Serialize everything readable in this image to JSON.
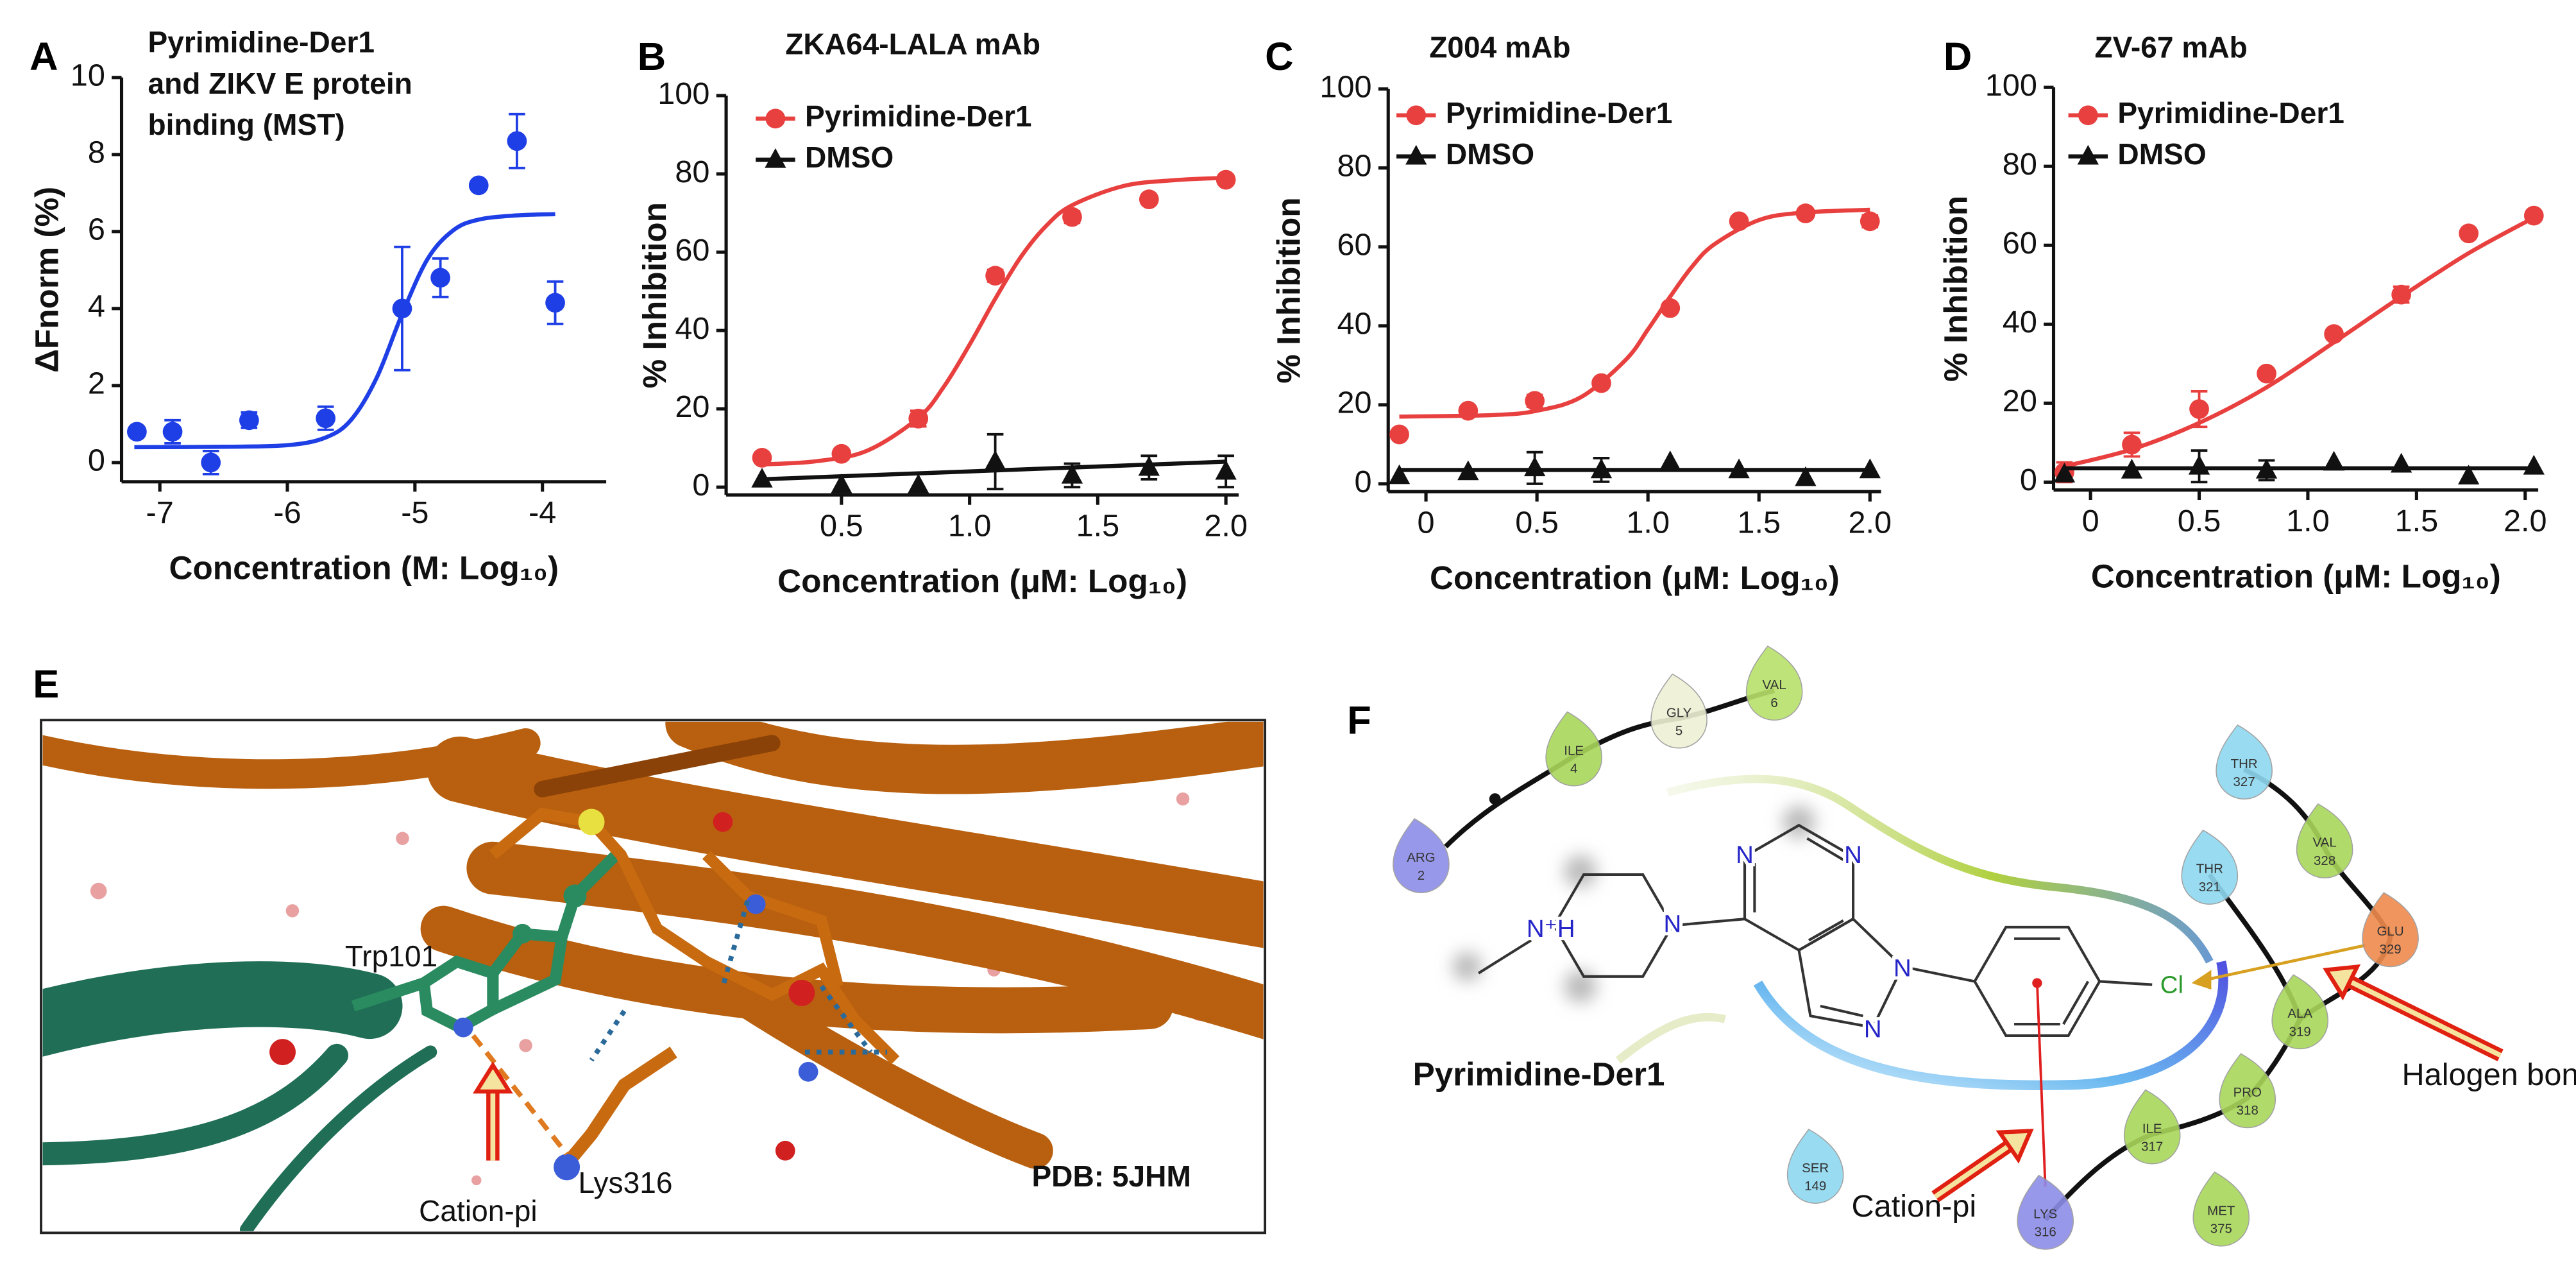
{
  "panel_labels": [
    "A",
    "B",
    "C",
    "D",
    "E",
    "F"
  ],
  "chart_data": [
    {
      "type": "scatter",
      "title": [
        "Pyrimidine-Der1",
        "and ZIKV E protein",
        "binding (MST)"
      ],
      "xlabel": "Concentration (M: Log₁₀)",
      "ylabel": "ΔFnorm (%)",
      "xlim": [
        -7.3,
        -3.5
      ],
      "ylim": [
        -0.5,
        10
      ],
      "xticks": [
        -7,
        -6,
        -5,
        -4
      ],
      "yticks": [
        0,
        2,
        4,
        6,
        8,
        10
      ],
      "series": [
        {
          "color": "#1f3fe6",
          "marker": "circle",
          "x": [
            -7.18,
            -6.9,
            -6.6,
            -6.3,
            -5.7,
            -5.1,
            -4.8,
            -4.5,
            -4.2,
            -3.9
          ],
          "values": [
            0.8,
            0.8,
            0.0,
            1.1,
            1.15,
            4.0,
            4.8,
            7.2,
            8.35,
            4.15
          ],
          "errors": [
            null,
            0.3,
            0.3,
            0.2,
            0.3,
            1.6,
            0.5,
            null,
            0.7,
            0.55
          ],
          "fit": {
            "x": [
              -7.2,
              -6.5,
              -6,
              -5.7,
              -5.5,
              -5.3,
              -5.1,
              -4.9,
              -4.7,
              -4.5,
              -4.2,
              -3.9
            ],
            "values": [
              0.4,
              0.41,
              0.45,
              0.65,
              1.11,
              2.2,
              3.86,
              5.29,
              6.03,
              6.31,
              6.42,
              6.45
            ]
          }
        }
      ]
    },
    {
      "type": "scatter",
      "title": "ZKA64-LALA mAb",
      "legend": "upper left",
      "xlabel": "Concentration (μM: Log₁₀)",
      "ylabel": "% Inhibition",
      "xlim": [
        0.05,
        2.05
      ],
      "ylim": [
        -2,
        100
      ],
      "xticks": [
        0.5,
        {
          "value": 1,
          "label": "1.0"
        },
        1.5,
        {
          "value": 2,
          "label": "2.0"
        }
      ],
      "yticks": [
        0,
        20,
        40,
        60,
        80,
        100
      ],
      "series": [
        {
          "name": "Pyrimidine-Der1",
          "color": "#e8403f",
          "marker": "circle",
          "x": [
            0.19,
            0.5,
            0.8,
            1.1,
            1.4,
            1.7,
            2.0
          ],
          "values": [
            7.5,
            8.5,
            17.5,
            54,
            69,
            73.5,
            78.5
          ],
          "errors": [
            null,
            null,
            2,
            1.5,
            1.5,
            null,
            null
          ],
          "fit": {
            "x": [
              0.19,
              0.4,
              0.6,
              0.8,
              0.9,
              1.0,
              1.1,
              1.2,
              1.3,
              1.4,
              1.6,
              1.8,
              2.0
            ],
            "values": [
              5.8,
              6.6,
              9.3,
              17.7,
              25.7,
              36.4,
              48.1,
              58.8,
              66.8,
              72,
              76.9,
              78.4,
              79
            ]
          }
        },
        {
          "name": "DMSO",
          "color": "#111111",
          "marker": "triangle",
          "x": [
            0.19,
            0.5,
            0.8,
            1.1,
            1.4,
            1.7,
            2.0
          ],
          "values": [
            2,
            0.5,
            0.5,
            6.5,
            3,
            5,
            4
          ],
          "errors": [
            null,
            null,
            null,
            7,
            3,
            3,
            4
          ],
          "fit": {
            "x": [
              0.19,
              2.0
            ],
            "values": [
              2,
              6.5
            ]
          }
        }
      ]
    },
    {
      "type": "scatter",
      "title": "Z004 mAb",
      "legend": "upper left",
      "xlabel": "Concentration (μM: Log₁₀)",
      "ylabel": "% Inhibition",
      "xlim": [
        -0.17,
        2.05
      ],
      "ylim": [
        -2,
        100
      ],
      "xticks": [
        0,
        0.5,
        {
          "value": 1,
          "label": "1.0"
        },
        1.5,
        {
          "value": 2,
          "label": "2.0"
        }
      ],
      "yticks": [
        0,
        20,
        40,
        60,
        80,
        100
      ],
      "series": [
        {
          "name": "Pyrimidine-Der1",
          "color": "#e8403f",
          "marker": "circle",
          "x": [
            -0.12,
            0.19,
            0.49,
            0.79,
            1.1,
            1.41,
            1.71,
            2.0
          ],
          "values": [
            12.5,
            18.5,
            21,
            25.5,
            44.5,
            66.5,
            68.5,
            66.5
          ],
          "errors": [
            null,
            1,
            1.5,
            1,
            1,
            1,
            1,
            1.5
          ],
          "fit": {
            "x": [
              -0.12,
              0.3,
              0.5,
              0.7,
              0.9,
              1.0,
              1.1,
              1.2,
              1.3,
              1.5,
              1.7,
              2.0
            ],
            "values": [
              17,
              17.4,
              18.5,
              22,
              31.4,
              39.1,
              47.4,
              55.1,
              60.7,
              66.8,
              68.7,
              69.4
            ]
          }
        },
        {
          "name": "DMSO",
          "color": "#111111",
          "marker": "triangle",
          "x": [
            -0.12,
            0.19,
            0.49,
            0.79,
            1.1,
            1.41,
            1.71,
            2.0
          ],
          "values": [
            2,
            3,
            4,
            3.5,
            5.5,
            3.5,
            1.5,
            3.5
          ],
          "errors": [
            null,
            null,
            4,
            3,
            null,
            null,
            null,
            null
          ],
          "fit": {
            "x": [
              -0.12,
              2.0
            ],
            "values": [
              3.5,
              3.5
            ]
          }
        }
      ]
    },
    {
      "type": "scatter",
      "title": "ZV-67 mAb",
      "legend": "upper left",
      "xlabel": "Concentration (μM: Log₁₀)",
      "ylabel": "% Inhibition",
      "xlim": [
        -0.17,
        2.06
      ],
      "ylim": [
        -2,
        100
      ],
      "xticks": [
        0,
        0.5,
        {
          "value": 1,
          "label": "1.0"
        },
        1.5,
        {
          "value": 2,
          "label": "2.0"
        }
      ],
      "yticks": [
        0,
        20,
        40,
        60,
        80,
        100
      ],
      "series": [
        {
          "name": "Pyrimidine-Der1",
          "color": "#e8403f",
          "marker": "circle",
          "x": [
            -0.12,
            0.19,
            0.5,
            0.81,
            1.12,
            1.43,
            1.74,
            2.04
          ],
          "values": [
            2.5,
            9.5,
            18.5,
            27.5,
            37.5,
            47.5,
            63,
            67.5
          ],
          "errors": [
            2.5,
            3,
            4.5,
            1,
            1,
            2,
            1,
            1
          ],
          "fit": {
            "x": [
              -0.12,
              0.19,
              0.5,
              0.81,
              1.12,
              1.43,
              1.74,
              2.04
            ],
            "values": [
              4,
              8.3,
              15,
              24,
              35.4,
              47,
              58,
              67
            ]
          }
        },
        {
          "name": "DMSO",
          "color": "#111111",
          "marker": "triangle",
          "x": [
            -0.12,
            0.19,
            0.5,
            0.81,
            1.12,
            1.43,
            1.74,
            2.04
          ],
          "values": [
            2,
            3,
            4,
            3,
            5,
            4.5,
            1.5,
            4
          ],
          "errors": [
            null,
            null,
            4,
            2.5,
            null,
            null,
            null,
            null
          ],
          "fit": {
            "x": [
              -0.12,
              2.04
            ],
            "values": [
              3.5,
              3.5
            ]
          }
        }
      ]
    }
  ],
  "structure_view": {
    "residue_a": "Trp101",
    "residue_b": "Lys316",
    "interaction": "Cation-pi",
    "pdb": "PDB: 5JHM"
  },
  "interaction_diagram": {
    "ligand": "Pyrimidine-Der1",
    "annotations": [
      "Halogen bond",
      "Cation-pi"
    ],
    "atoms": [
      "N",
      "N",
      "N",
      "N",
      "N",
      "N⁺H",
      "Cl"
    ],
    "residues": [
      {
        "name": "ARG",
        "number": 2,
        "color": "#8d8de8"
      },
      {
        "name": "ILE",
        "number": 4,
        "color": "#a8d65a"
      },
      {
        "name": "GLY",
        "number": 5,
        "color": "#eef0d4"
      },
      {
        "name": "VAL",
        "number": 6,
        "color": "#b8e06a"
      },
      {
        "name": "THR",
        "number": 327,
        "color": "#8fd8f0"
      },
      {
        "name": "VAL",
        "number": 328,
        "color": "#a8d65a"
      },
      {
        "name": "THR",
        "number": 321,
        "color": "#8fd8f0"
      },
      {
        "name": "GLU",
        "number": 329,
        "color": "#f08a4e"
      },
      {
        "name": "ALA",
        "number": 319,
        "color": "#a8d65a"
      },
      {
        "name": "PRO",
        "number": 318,
        "color": "#a8d65a"
      },
      {
        "name": "ILE",
        "number": 317,
        "color": "#a8d65a"
      },
      {
        "name": "LYS",
        "number": 316,
        "color": "#8d8de8"
      },
      {
        "name": "SER",
        "number": 149,
        "color": "#8fd8f0"
      },
      {
        "name": "MET",
        "number": 375,
        "color": "#a8d65a"
      }
    ]
  }
}
